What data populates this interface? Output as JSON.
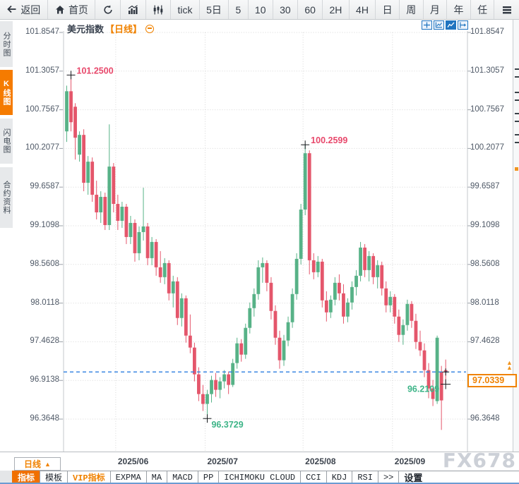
{
  "topbar": {
    "items": [
      {
        "icon": "back-arrow-icon",
        "label": "返回"
      },
      {
        "icon": "home-icon",
        "label": "首页"
      },
      {
        "icon": "refresh-icon",
        "label": ""
      },
      {
        "icon": "bar-chart-icon",
        "label": ""
      },
      {
        "icon": "candlestick-icon",
        "label": ""
      },
      {
        "label": "tick"
      },
      {
        "label": "5日"
      },
      {
        "label": "5"
      },
      {
        "label": "10"
      },
      {
        "label": "30"
      },
      {
        "label": "60"
      },
      {
        "label": "2H"
      },
      {
        "label": "4H"
      },
      {
        "label": "日"
      },
      {
        "label": "周"
      },
      {
        "label": "月"
      },
      {
        "label": "年"
      },
      {
        "label": "任"
      },
      {
        "icon": "menu-icon",
        "label": ""
      }
    ]
  },
  "sidebar": {
    "items": [
      {
        "label": "分时图",
        "active": false
      },
      {
        "label": "K线图",
        "active": true
      },
      {
        "label": "闪电图",
        "active": false
      },
      {
        "label": "合约资料",
        "active": false
      }
    ]
  },
  "chart": {
    "title": "美元指数",
    "period_tag": "【日线】",
    "collapse_icon": "circle-minus-icon",
    "mini_toolbar_icons": [
      "crosshair-icon",
      "zoom-chart-icon",
      "chart-select-icon",
      "pan-right-icon"
    ],
    "watermark": "FX678"
  },
  "chart_data": {
    "type": "candlestick",
    "symbol": "美元指数",
    "period": "日线",
    "y_ticks": [
      "101.8547",
      "101.3057",
      "100.7567",
      "100.2077",
      "99.6587",
      "99.1098",
      "98.5608",
      "98.0118",
      "97.4628",
      "96.9138",
      "96.3648"
    ],
    "y_top_tick": 101.8547,
    "y_tick_step": 0.549,
    "x_ticks": [
      "2025/06",
      "2025/07",
      "2025/08",
      "2025/09"
    ],
    "month_start_indices": [
      12,
      33,
      56,
      77
    ],
    "grid": true,
    "candles": [
      [
        100.45,
        101.1,
        100.3,
        101.02
      ],
      [
        101.02,
        101.25,
        100.45,
        100.58
      ],
      [
        100.8,
        100.85,
        100.05,
        100.36
      ],
      [
        100.12,
        100.45,
        100.02,
        100.4
      ],
      [
        100.4,
        100.48,
        99.6,
        99.72
      ],
      [
        99.72,
        100.1,
        99.55,
        100.02
      ],
      [
        100.02,
        100.08,
        99.45,
        99.55
      ],
      [
        99.55,
        99.75,
        99.2,
        99.3
      ],
      [
        99.3,
        99.6,
        99.15,
        99.52
      ],
      [
        99.52,
        99.58,
        99.05,
        99.12
      ],
      [
        99.12,
        100.55,
        99.05,
        99.95
      ],
      [
        99.95,
        100.0,
        99.3,
        99.42
      ],
      [
        99.42,
        99.55,
        99.05,
        99.18
      ],
      [
        99.18,
        99.45,
        99.08,
        99.38
      ],
      [
        99.38,
        99.42,
        98.85,
        98.95
      ],
      [
        98.95,
        99.25,
        98.85,
        99.15
      ],
      [
        99.15,
        99.2,
        98.6,
        98.72
      ],
      [
        98.72,
        99.1,
        98.62,
        99.02
      ],
      [
        99.02,
        99.65,
        98.9,
        99.1
      ],
      [
        99.1,
        99.15,
        98.55,
        98.65
      ],
      [
        98.65,
        98.95,
        98.55,
        98.88
      ],
      [
        98.88,
        98.92,
        98.4,
        98.52
      ],
      [
        98.52,
        98.75,
        98.3,
        98.38
      ],
      [
        98.38,
        98.65,
        98.28,
        98.58
      ],
      [
        98.58,
        98.62,
        98.05,
        98.15
      ],
      [
        98.15,
        98.4,
        97.95,
        98.32
      ],
      [
        98.32,
        98.38,
        97.7,
        97.8
      ],
      [
        97.8,
        98.15,
        97.68,
        98.08
      ],
      [
        98.08,
        98.12,
        97.45,
        97.55
      ],
      [
        97.55,
        97.85,
        97.3,
        97.38
      ],
      [
        97.38,
        97.45,
        96.9,
        97.0
      ],
      [
        97.0,
        97.1,
        96.62,
        96.72
      ],
      [
        96.72,
        96.85,
        96.48,
        96.58
      ],
      [
        96.58,
        96.78,
        96.3729,
        96.72
      ],
      [
        96.72,
        96.98,
        96.6,
        96.92
      ],
      [
        96.92,
        97.02,
        96.68,
        96.78
      ],
      [
        96.78,
        96.96,
        96.66,
        96.9
      ],
      [
        96.9,
        97.06,
        96.8,
        97.0
      ],
      [
        97.0,
        97.04,
        96.72,
        96.85
      ],
      [
        96.85,
        97.22,
        96.82,
        97.16
      ],
      [
        97.16,
        97.52,
        97.08,
        97.44
      ],
      [
        97.44,
        97.5,
        97.18,
        97.28
      ],
      [
        97.28,
        97.72,
        97.22,
        97.66
      ],
      [
        97.66,
        98.02,
        97.58,
        97.94
      ],
      [
        97.94,
        98.22,
        97.82,
        98.14
      ],
      [
        98.14,
        98.62,
        98.06,
        98.52
      ],
      [
        98.52,
        98.66,
        98.3,
        98.58
      ],
      [
        98.58,
        98.62,
        98.18,
        98.3
      ],
      [
        98.3,
        98.38,
        97.78,
        97.9
      ],
      [
        97.9,
        97.98,
        97.42,
        97.52
      ],
      [
        97.52,
        97.62,
        97.08,
        97.2
      ],
      [
        97.2,
        97.56,
        97.12,
        97.48
      ],
      [
        97.48,
        97.82,
        97.4,
        97.74
      ],
      [
        97.74,
        98.22,
        97.66,
        98.14
      ],
      [
        98.14,
        98.72,
        98.06,
        98.64
      ],
      [
        98.64,
        99.42,
        98.56,
        99.34
      ],
      [
        99.34,
        100.2599,
        99.26,
        100.14
      ],
      [
        100.14,
        100.18,
        98.42,
        98.62
      ],
      [
        98.62,
        98.72,
        98.35,
        98.45
      ],
      [
        98.45,
        98.68,
        98.38,
        98.6
      ],
      [
        98.6,
        98.64,
        97.95,
        98.05
      ],
      [
        98.05,
        98.18,
        97.75,
        97.88
      ],
      [
        97.88,
        98.12,
        97.8,
        98.06
      ],
      [
        98.06,
        98.38,
        97.98,
        98.3
      ],
      [
        98.3,
        98.42,
        98.05,
        98.15
      ],
      [
        98.15,
        98.28,
        97.72,
        97.82
      ],
      [
        97.82,
        98.08,
        97.74,
        98.02
      ],
      [
        98.02,
        98.32,
        97.92,
        98.24
      ],
      [
        98.24,
        98.48,
        98.12,
        98.4
      ],
      [
        98.4,
        98.88,
        98.32,
        98.8
      ],
      [
        98.8,
        98.85,
        98.38,
        98.48
      ],
      [
        98.48,
        98.75,
        98.32,
        98.68
      ],
      [
        98.68,
        98.72,
        98.28,
        98.38
      ],
      [
        98.38,
        98.62,
        98.22,
        98.55
      ],
      [
        98.55,
        98.6,
        98.12,
        98.22
      ],
      [
        98.22,
        98.32,
        97.88,
        97.98
      ],
      [
        97.98,
        98.18,
        97.88,
        98.1
      ],
      [
        98.1,
        98.14,
        97.72,
        97.82
      ],
      [
        97.82,
        97.92,
        97.46,
        97.56
      ],
      [
        97.56,
        97.78,
        97.42,
        97.7
      ],
      [
        97.7,
        98.06,
        97.62,
        98.0
      ],
      [
        98.0,
        98.04,
        97.66,
        97.76
      ],
      [
        97.76,
        97.86,
        97.36,
        97.46
      ],
      [
        97.46,
        97.62,
        97.26,
        97.34
      ],
      [
        97.34,
        97.44,
        96.96,
        97.06
      ],
      [
        97.06,
        97.16,
        96.66,
        96.8
      ],
      [
        96.8,
        96.92,
        96.55,
        96.65
      ],
      [
        96.62,
        97.55,
        96.58,
        97.52
      ],
      [
        97.03,
        97.12,
        96.2109,
        96.63
      ],
      [
        97.06,
        97.21,
        96.86,
        97.0339
      ]
    ],
    "annotations": [
      {
        "text": "101.2500",
        "candle_index": 1,
        "point": "high",
        "color_role": "down"
      },
      {
        "text": "100.2599",
        "candle_index": 56,
        "point": "high",
        "color_role": "down"
      },
      {
        "text": "96.3729",
        "candle_index": 33,
        "point": "low",
        "color_role": "up"
      },
      {
        "text": "96.2109",
        "candle_index": 89,
        "point": "low",
        "color_role": "up",
        "label_side": "left"
      }
    ],
    "current_price": "97.0339",
    "current_price_value": 97.0339,
    "current_price_arrows": "▲▲"
  },
  "bottom": {
    "period_button": {
      "label": "日线",
      "arrow": "▲"
    },
    "tabs": [
      {
        "label": "指标",
        "style": "active"
      },
      {
        "label": "模板",
        "style": "normal"
      },
      {
        "label": "VIP指标",
        "style": "vip"
      },
      {
        "label": "EXPMA",
        "style": "normal"
      },
      {
        "label": "MA",
        "style": "normal"
      },
      {
        "label": "MACD",
        "style": "normal"
      },
      {
        "label": "PP",
        "style": "normal"
      },
      {
        "label": "ICHIMOKU CLOUD",
        "style": "normal"
      },
      {
        "label": "CCI",
        "style": "normal"
      },
      {
        "label": "KDJ",
        "style": "normal"
      },
      {
        "label": "RSI",
        "style": "normal"
      },
      {
        "label": ">>",
        "style": "normal"
      },
      {
        "label": "设置",
        "style": "settings"
      }
    ]
  },
  "colors": {
    "up": "#57b287",
    "down": "#e4566b",
    "annotation_up": "#3db487",
    "annotation_down": "#e8486b",
    "accent": "#f08200",
    "current_line": "#2b7de0",
    "grid": "#d8d8d8",
    "axis_text": "#4e5866",
    "watermark": "#ccd0d7",
    "icon_blue": "#1f74c0"
  }
}
